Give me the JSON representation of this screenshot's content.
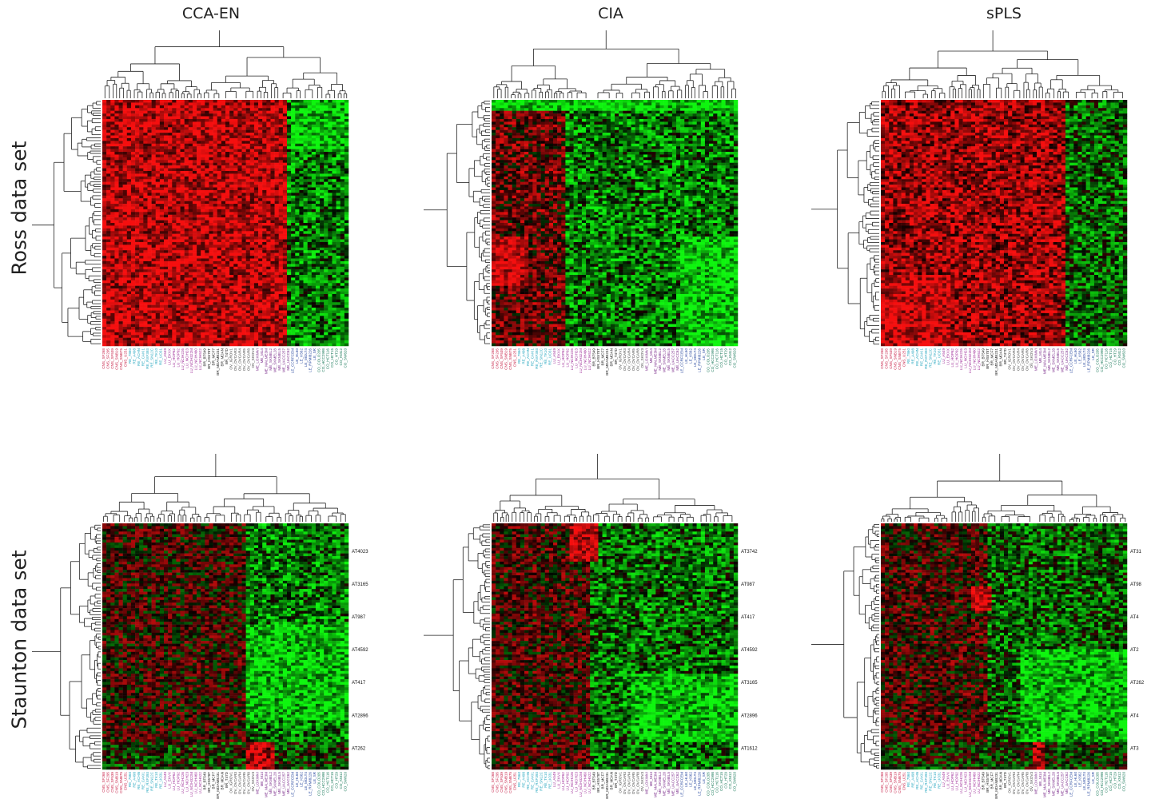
{
  "colors": {
    "positive": "#e01010",
    "negative": "#18e018",
    "zero": "#000000",
    "tree": "#222222"
  },
  "column_titles": [
    "CCA-EN",
    "CIA",
    "sPLS"
  ],
  "row_titles": [
    "Ross data set",
    "Staunton data set"
  ],
  "cell_lines": [
    "CNS_SF268",
    "CNS_SF295",
    "CNS_SF539",
    "CNS_SNB19",
    "CNS_SNB75",
    "CNS_U251",
    "RE_7860",
    "RE_A498",
    "RE_ACHN",
    "RE_CAKI1",
    "RE_RXF393",
    "RE_SN12C",
    "RE_TK10",
    "RE_UO31",
    "LU_A549",
    "LU_EKVX",
    "LU_HOP62",
    "LU_HOP92",
    "LU_NCIH226",
    "LU_NCIH23",
    "LU_NCIH322M",
    "LU_NCIH460",
    "LU_NCIH522",
    "BR_BT549",
    "BR_HS578T",
    "BR_MCF7",
    "BR_MDAMB231",
    "BR_MDAN",
    "BR_T47D",
    "OV_IGROV1",
    "OV_OVCAR3",
    "OV_OVCAR4",
    "OV_OVCAR5",
    "OV_OVCAR8",
    "OV_SKOV3",
    "ME_LOXIMVI",
    "ME_M14",
    "ME_MALME3M",
    "ME_SKMEL2",
    "ME_SKMEL28",
    "ME_SKMEL5",
    "ME_UACC257",
    "ME_UACC62",
    "LE_CCRFCEM",
    "LE_HL60",
    "LE_K562",
    "LE_MOLT4",
    "LE_RPMI8226",
    "LE_SR",
    "CO_COLO205",
    "CO_HCC2998",
    "CO_HCT116",
    "CO_HCT15",
    "CO_HT29",
    "CO_KM12",
    "CO_SW620"
  ],
  "panels": [
    {
      "panel_id": "ross-cca-en",
      "column": "CCA-EN",
      "row": "Ross data set",
      "side_labels": []
    },
    {
      "panel_id": "ross-cia",
      "column": "CIA",
      "row": "Ross data set",
      "side_labels": []
    },
    {
      "panel_id": "ross-spls",
      "column": "sPLS",
      "row": "Ross data set",
      "side_labels": []
    },
    {
      "panel_id": "staunton-cca-en",
      "column": "CCA-EN",
      "row": "Staunton data set",
      "side_labels": [
        "AT4023",
        "AT3165",
        "AT987",
        "AT4592",
        "AT417",
        "AT2896",
        "AT262"
      ]
    },
    {
      "panel_id": "staunton-cia",
      "column": "CIA",
      "row": "Staunton data set",
      "side_labels": [
        "AT3742",
        "AT987",
        "AT417",
        "AT4592",
        "AT3165",
        "AT2896",
        "AT1612"
      ]
    },
    {
      "panel_id": "staunton-spls",
      "column": "sPLS",
      "row": "Staunton data set",
      "side_labels": [
        "AT31",
        "AT98",
        "AT4",
        "AT2",
        "AT262",
        "AT4",
        "AT3"
      ]
    }
  ],
  "chart_data": [
    {
      "type": "heatmap",
      "title": "CCA-EN",
      "row_group": "Ross data set",
      "n_rows": 90,
      "n_cols": 60,
      "value_range": [
        -1,
        1
      ],
      "color_scale": [
        "green",
        "black",
        "red"
      ],
      "dendrograms": [
        "top",
        "left"
      ]
    },
    {
      "type": "heatmap",
      "title": "CIA",
      "row_group": "Ross data set",
      "n_rows": 90,
      "n_cols": 60,
      "value_range": [
        -1,
        1
      ],
      "color_scale": [
        "green",
        "black",
        "red"
      ],
      "dendrograms": [
        "top",
        "left"
      ]
    },
    {
      "type": "heatmap",
      "title": "sPLS",
      "row_group": "Ross data set",
      "n_rows": 90,
      "n_cols": 60,
      "value_range": [
        -1,
        1
      ],
      "color_scale": [
        "green",
        "black",
        "red"
      ],
      "dendrograms": [
        "top",
        "left"
      ]
    },
    {
      "type": "heatmap",
      "title": "CCA-EN",
      "row_group": "Staunton data set",
      "n_rows": 90,
      "n_cols": 60,
      "value_range": [
        -1,
        1
      ],
      "color_scale": [
        "green",
        "black",
        "red"
      ],
      "dendrograms": [
        "top",
        "left"
      ]
    },
    {
      "type": "heatmap",
      "title": "CIA",
      "row_group": "Staunton data set",
      "n_rows": 90,
      "n_cols": 60,
      "value_range": [
        -1,
        1
      ],
      "color_scale": [
        "green",
        "black",
        "red"
      ],
      "dendrograms": [
        "top",
        "left"
      ]
    },
    {
      "type": "heatmap",
      "title": "sPLS",
      "row_group": "Staunton data set",
      "n_rows": 90,
      "n_cols": 60,
      "value_range": [
        -1,
        1
      ],
      "color_scale": [
        "green",
        "black",
        "red"
      ],
      "dendrograms": [
        "top",
        "left"
      ]
    }
  ]
}
